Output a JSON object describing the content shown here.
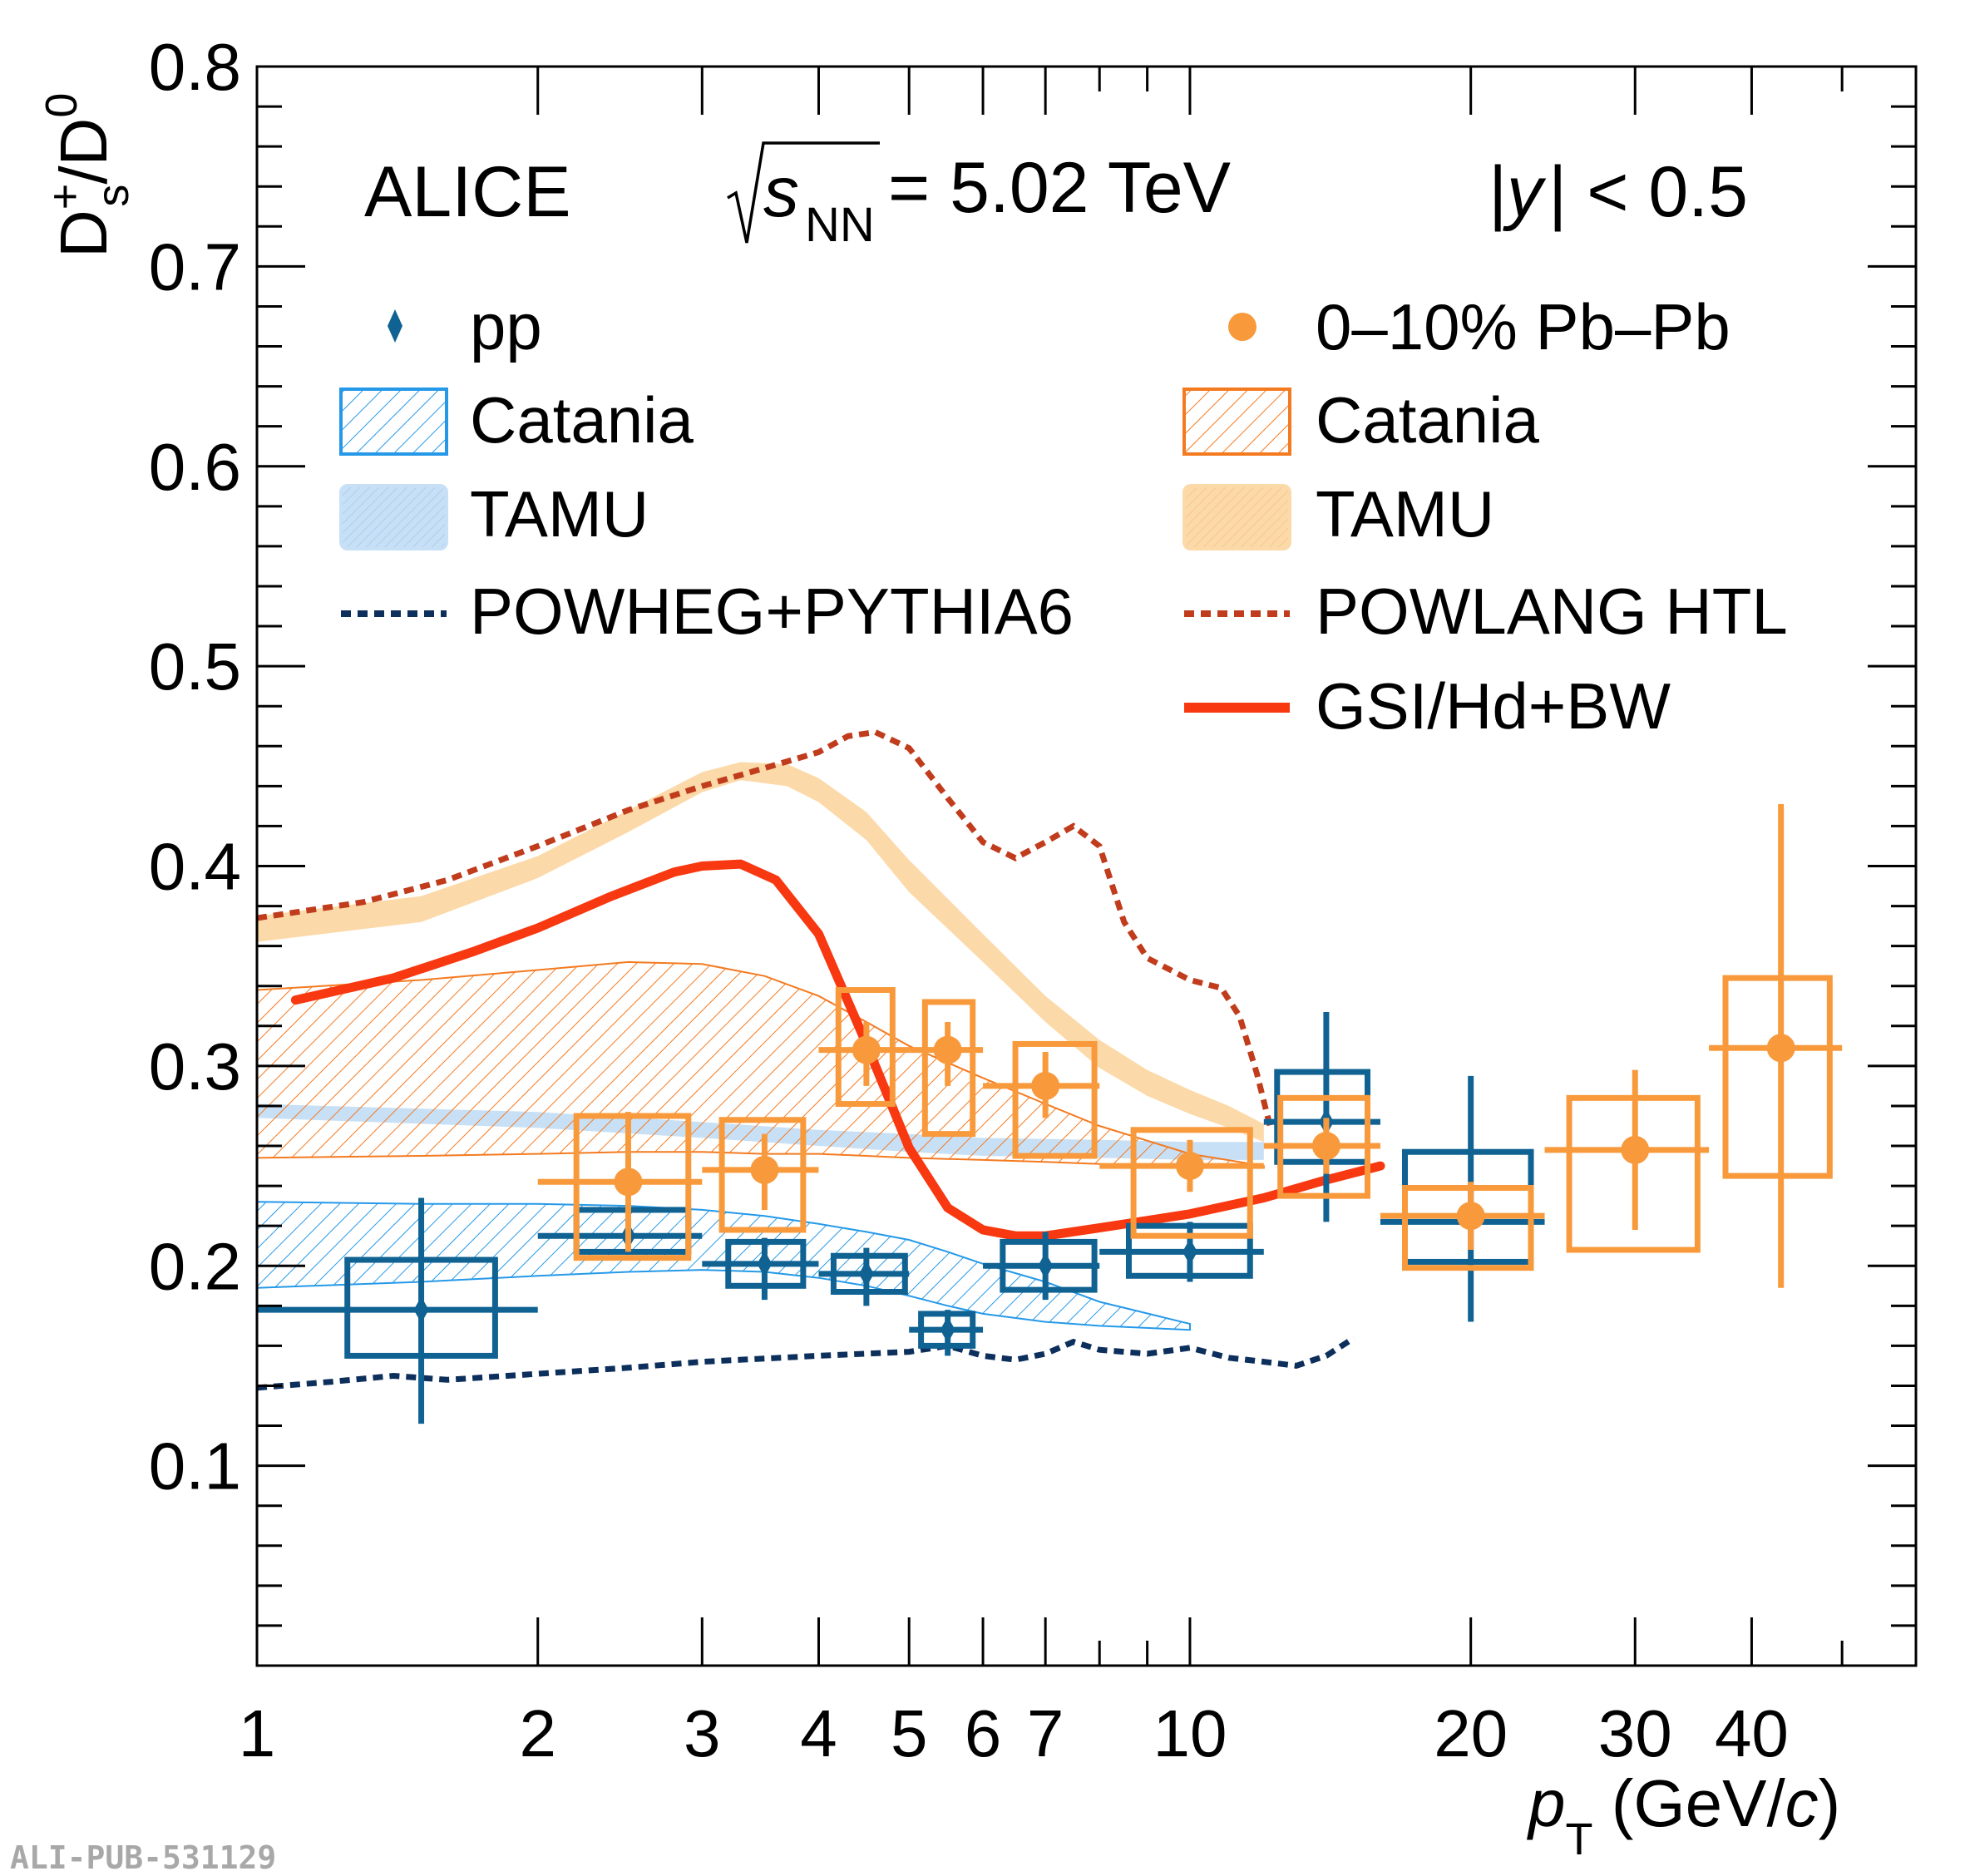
{
  "header": {
    "experiment": "ALICE",
    "energy_prefix": "s",
    "energy_sub": "NN",
    "energy_value": " = 5.02 TeV",
    "rapidity_y": "y",
    "rapidity_rest": "| < 0.5"
  },
  "footer_id": "ALI-PUB-531129",
  "colors": {
    "pp": "#0f6292",
    "pbpb": "#f89a3c",
    "catania_pp": "#2599e8",
    "tamu_pp": "#c8e0f6",
    "catania_pbpb": "#f47a20",
    "tamu_pbpb": "#fcd9a8",
    "powheg": "#0c2f5c",
    "powlang": "#c03c1c",
    "gsi": "#f83810"
  },
  "legend": {
    "pp": "pp",
    "pbpb": "0–10% Pb–Pb",
    "catania_pp": "Catania",
    "catania_pbpb": "Catania",
    "tamu_pp": "TAMU",
    "tamu_pbpb": "TAMU",
    "powheg": "POWHEG+PYTHIA6",
    "powlang": "POWLANG HTL",
    "gsi": "GSI/Hd+BW"
  },
  "chart_data": {
    "type": "scatter",
    "x_scale": "log",
    "xlim": [
      1,
      60
    ],
    "ylim": [
      0,
      0.8
    ],
    "xlabel": {
      "var": "p",
      "sub": "T",
      "unit_a": " (GeV/",
      "unit_c": "c",
      "unit_b": ")"
    },
    "ylabel": {
      "a": "D",
      "a_sup": "+",
      "a_sub": "s",
      "b": "/D",
      "b_sup": "0"
    },
    "x_ticks": [
      1,
      2,
      3,
      4,
      5,
      6,
      7,
      10,
      20,
      30,
      40
    ],
    "y_ticks": [
      0.1,
      0.2,
      0.3,
      0.4,
      0.5,
      0.6,
      0.7,
      0.8
    ],
    "grid": false,
    "legend_position": "top",
    "series": [
      {
        "name": "pp",
        "kind": "points",
        "points": [
          {
            "x": 1.5,
            "y": 0.178,
            "xlo": 1.0,
            "xhi": 2.0,
            "stat": [
              0.057,
              0.056
            ],
            "syst": [
              0.023,
              0.025
            ],
            "box_w": [
              1.25,
              1.8
            ]
          },
          {
            "x": 2.5,
            "y": 0.215,
            "xlo": 2.0,
            "xhi": 3.0,
            "stat": [
              0.0,
              0.0
            ],
            "syst": [
              0.008,
              0.013
            ],
            "box_w": [
              2.2,
              2.9
            ]
          },
          {
            "x": 3.5,
            "y": 0.201,
            "xlo": 3.0,
            "xhi": 4.0,
            "stat": [
              0.018,
              0.013
            ],
            "syst": [
              0.011,
              0.011
            ],
            "box_w": [
              3.2,
              3.85
            ]
          },
          {
            "x": 4.5,
            "y": 0.196,
            "xlo": 4.0,
            "xhi": 5.0,
            "stat": [
              0.016,
              0.013
            ],
            "syst": [
              0.009,
              0.009
            ],
            "box_w": [
              4.15,
              4.95
            ]
          },
          {
            "x": 5.5,
            "y": 0.168,
            "xlo": 5.0,
            "xhi": 6.0,
            "stat": [
              0.013,
              0.01
            ],
            "syst": [
              0.008,
              0.008
            ],
            "box_w": [
              5.15,
              5.85
            ]
          },
          {
            "x": 7.0,
            "y": 0.2,
            "xlo": 6.0,
            "xhi": 8.0,
            "stat": [
              0.017,
              0.017
            ],
            "syst": [
              0.012,
              0.012
            ],
            "box_w": [
              6.3,
              7.9
            ]
          },
          {
            "x": 10.0,
            "y": 0.207,
            "xlo": 8.0,
            "xhi": 12.0,
            "stat": [
              0.015,
              0.015
            ],
            "syst": [
              0.012,
              0.013
            ],
            "box_w": [
              8.6,
              11.6
            ]
          },
          {
            "x": 14.0,
            "y": 0.272,
            "xlo": 12.0,
            "xhi": 16.0,
            "stat": [
              0.05,
              0.055
            ],
            "syst": [
              0.02,
              0.025
            ],
            "box_w": [
              12.4,
              15.5
            ]
          },
          {
            "x": 20.0,
            "y": 0.222,
            "xlo": 16.0,
            "xhi": 24.0,
            "stat": [
              0.05,
              0.073
            ],
            "syst": [
              0.02,
              0.035
            ],
            "box_w": [
              17.0,
              23.2
            ]
          }
        ]
      },
      {
        "name": "0–10% Pb–Pb",
        "kind": "points",
        "points": [
          {
            "x": 2.5,
            "y": 0.242,
            "xlo": 2.0,
            "xhi": 3.0,
            "stat": [
              0.035,
              0.035
            ],
            "syst": [
              0.038,
              0.033
            ],
            "box_w": [
              2.2,
              2.9
            ]
          },
          {
            "x": 3.5,
            "y": 0.248,
            "xlo": 3.0,
            "xhi": 4.0,
            "stat": [
              0.02,
              0.018
            ],
            "syst": [
              0.03,
              0.025
            ],
            "box_w": [
              3.15,
              3.85
            ]
          },
          {
            "x": 4.5,
            "y": 0.308,
            "xlo": 4.0,
            "xhi": 5.0,
            "stat": [
              0.018,
              0.014
            ],
            "syst": [
              0.027,
              0.03
            ],
            "box_w": [
              4.2,
              4.8
            ]
          },
          {
            "x": 5.5,
            "y": 0.308,
            "xlo": 5.0,
            "xhi": 6.0,
            "stat": [
              0.018,
              0.014
            ],
            "syst": [
              0.042,
              0.024
            ],
            "box_w": [
              5.2,
              5.85
            ]
          },
          {
            "x": 7.0,
            "y": 0.29,
            "xlo": 6.0,
            "xhi": 8.0,
            "stat": [
              0.016,
              0.017
            ],
            "syst": [
              0.035,
              0.021
            ],
            "box_w": [
              6.5,
              7.9
            ]
          },
          {
            "x": 10.0,
            "y": 0.25,
            "xlo": 8.0,
            "xhi": 12.0,
            "stat": [
              0.013,
              0.013
            ],
            "syst": [
              0.035,
              0.018
            ],
            "box_w": [
              8.7,
              11.6
            ]
          },
          {
            "x": 14.0,
            "y": 0.26,
            "xlo": 12.0,
            "xhi": 16.0,
            "stat": [
              0.014,
              0.014
            ],
            "syst": [
              0.025,
              0.024
            ],
            "box_w": [
              12.5,
              15.5
            ]
          },
          {
            "x": 20.0,
            "y": 0.225,
            "xlo": 16.0,
            "xhi": 24.0,
            "stat": [
              0.017,
              0.017
            ],
            "syst": [
              0.026,
              0.014
            ],
            "box_w": [
              17.0,
              23.2
            ]
          },
          {
            "x": 30.0,
            "y": 0.258,
            "xlo": 24.0,
            "xhi": 36.0,
            "stat": [
              0.04,
              0.04
            ],
            "syst": [
              0.05,
              0.026
            ],
            "box_w": [
              25.5,
              35.0
            ]
          },
          {
            "x": 43.0,
            "y": 0.309,
            "xlo": 36.0,
            "xhi": 50.0,
            "stat": [
              0.12,
              0.122
            ],
            "syst": [
              0.064,
              0.035
            ],
            "box_w": [
              37.5,
              48.5
            ]
          }
        ]
      },
      {
        "name": "Catania (pp)",
        "kind": "band",
        "x": [
          1.0,
          1.5,
          2.0,
          2.5,
          3.0,
          3.5,
          4.0,
          4.5,
          5.0,
          5.5,
          6.0,
          7.0,
          8.0,
          10.0
        ],
        "upper": [
          0.232,
          0.231,
          0.231,
          0.23,
          0.228,
          0.225,
          0.221,
          0.217,
          0.213,
          0.207,
          0.201,
          0.192,
          0.182,
          0.171
        ],
        "lower": [
          0.189,
          0.192,
          0.195,
          0.197,
          0.198,
          0.197,
          0.194,
          0.19,
          0.185,
          0.18,
          0.176,
          0.172,
          0.17,
          0.168
        ]
      },
      {
        "name": "TAMU (pp)",
        "kind": "band",
        "x": [
          1.0,
          2.0,
          3.0,
          4.0,
          5.0,
          6.0,
          8.0,
          10.0,
          12.0
        ],
        "upper": [
          0.281,
          0.277,
          0.272,
          0.268,
          0.266,
          0.264,
          0.263,
          0.262,
          0.262
        ],
        "lower": [
          0.274,
          0.269,
          0.264,
          0.26,
          0.257,
          0.255,
          0.254,
          0.253,
          0.253
        ]
      },
      {
        "name": "Catania (Pb–Pb)",
        "kind": "band",
        "x": [
          1.0,
          1.5,
          2.0,
          2.5,
          3.0,
          3.5,
          4.0,
          4.5,
          5.0,
          6.0,
          7.0,
          8.0,
          10.0,
          12.0
        ],
        "upper": [
          0.338,
          0.343,
          0.348,
          0.352,
          0.351,
          0.345,
          0.335,
          0.322,
          0.31,
          0.294,
          0.281,
          0.27,
          0.256,
          0.25
        ],
        "lower": [
          0.254,
          0.255,
          0.256,
          0.257,
          0.257,
          0.256,
          0.256,
          0.255,
          0.254,
          0.253,
          0.252,
          0.251,
          0.249,
          0.249
        ]
      },
      {
        "name": "TAMU (Pb–Pb)",
        "kind": "band",
        "x": [
          1.0,
          1.5,
          2.0,
          2.5,
          3.0,
          3.3,
          3.7,
          4.0,
          4.5,
          5.0,
          6.0,
          7.0,
          8.0,
          9.0,
          10.0,
          11.0,
          12.0
        ],
        "upper": [
          0.375,
          0.385,
          0.405,
          0.428,
          0.447,
          0.452,
          0.451,
          0.444,
          0.427,
          0.403,
          0.366,
          0.335,
          0.313,
          0.298,
          0.288,
          0.28,
          0.271
        ],
        "lower": [
          0.362,
          0.372,
          0.394,
          0.417,
          0.437,
          0.443,
          0.44,
          0.432,
          0.413,
          0.387,
          0.352,
          0.322,
          0.299,
          0.285,
          0.276,
          0.269,
          0.262
        ]
      },
      {
        "name": "POWHEG+PYTHIA6",
        "kind": "dashed_line",
        "x": [
          1.0,
          1.2,
          1.4,
          1.6,
          2.0,
          2.5,
          3.0,
          4.0,
          5.0,
          5.5,
          6.0,
          6.5,
          7.0,
          7.5,
          8.0,
          9.0,
          10.0,
          11.0,
          12.0,
          13.0,
          14.0,
          15.0
        ],
        "y": [
          0.139,
          0.142,
          0.145,
          0.143,
          0.146,
          0.149,
          0.152,
          0.155,
          0.157,
          0.16,
          0.155,
          0.153,
          0.156,
          0.162,
          0.158,
          0.156,
          0.159,
          0.154,
          0.152,
          0.15,
          0.155,
          0.164
        ]
      },
      {
        "name": "POWLANG HTL",
        "kind": "dashed_line",
        "x": [
          1.0,
          1.3,
          1.6,
          2.0,
          2.5,
          3.0,
          3.5,
          4.0,
          4.3,
          4.6,
          5.0,
          5.5,
          6.0,
          6.5,
          7.0,
          7.5,
          8.0,
          8.5,
          9.0,
          10.0,
          10.8,
          11.3,
          11.8,
          12.2
        ],
        "y": [
          0.374,
          0.382,
          0.393,
          0.41,
          0.428,
          0.44,
          0.449,
          0.457,
          0.465,
          0.467,
          0.459,
          0.434,
          0.412,
          0.404,
          0.412,
          0.42,
          0.41,
          0.372,
          0.354,
          0.343,
          0.339,
          0.325,
          0.296,
          0.269
        ]
      },
      {
        "name": "GSI/Hd+BW",
        "kind": "line",
        "x": [
          1.1,
          1.4,
          1.7,
          2.0,
          2.4,
          2.8,
          3.0,
          3.3,
          3.6,
          4.0,
          4.5,
          5.0,
          5.5,
          6.0,
          6.5,
          7.0,
          8.0,
          10.0,
          12.0,
          14.0,
          16.0
        ],
        "y": [
          0.333,
          0.344,
          0.357,
          0.369,
          0.385,
          0.397,
          0.4,
          0.401,
          0.393,
          0.366,
          0.311,
          0.259,
          0.229,
          0.218,
          0.215,
          0.215,
          0.219,
          0.226,
          0.234,
          0.243,
          0.25
        ]
      }
    ]
  }
}
